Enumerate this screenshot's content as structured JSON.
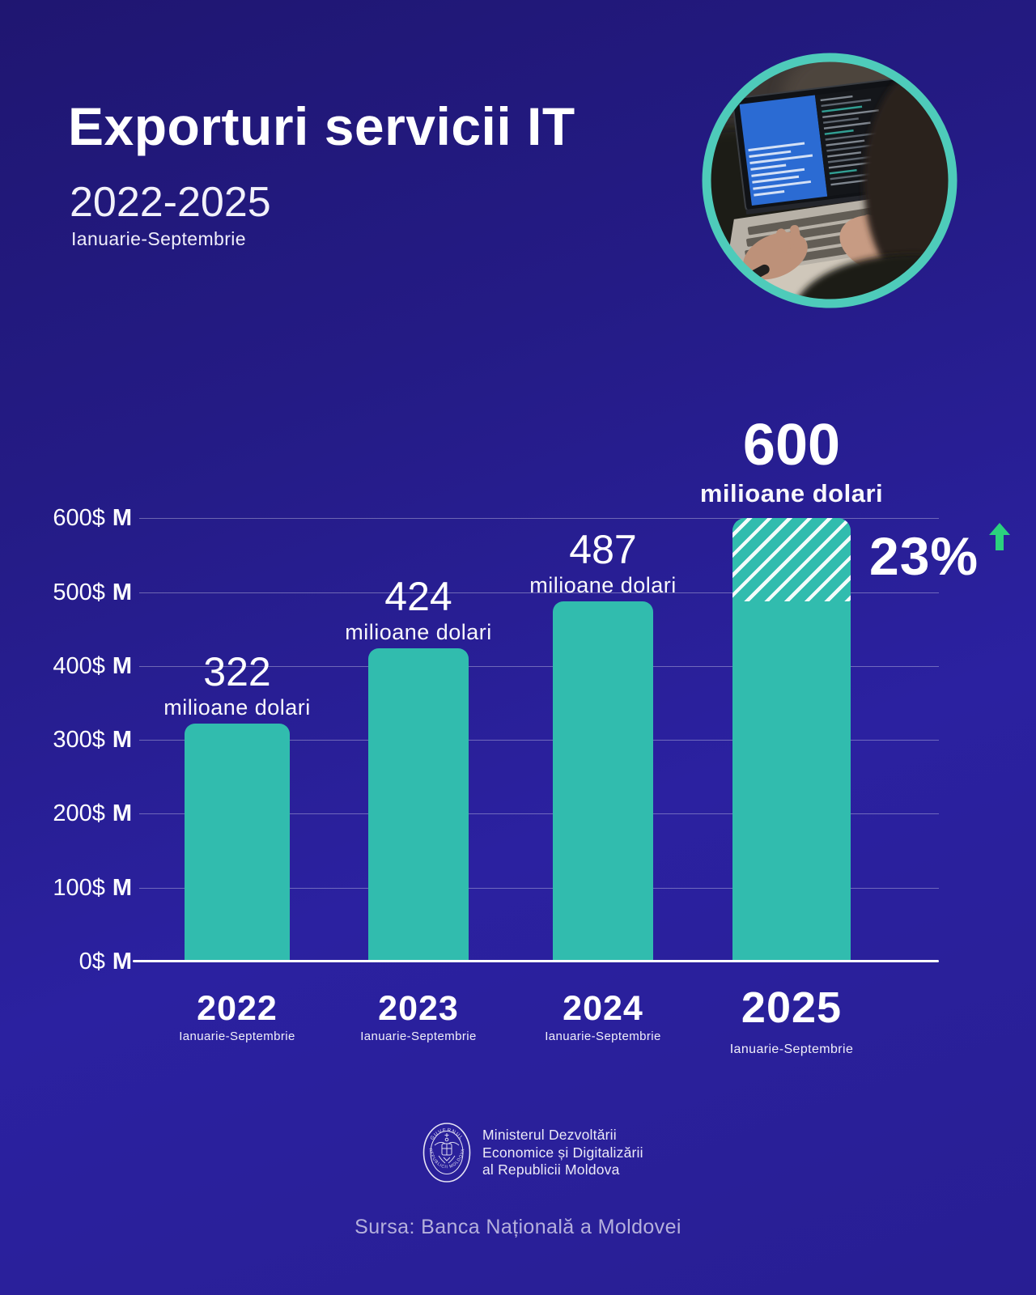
{
  "header": {
    "title": "Exporturi servicii IT",
    "years": "2022-2025",
    "period": "Ianuarie-Septembrie"
  },
  "chart_data": {
    "type": "bar",
    "title": "Exporturi servicii IT 2022-2025 Ianuarie-Septembrie",
    "categories": [
      "2022",
      "2023",
      "2024",
      "2025"
    ],
    "category_sublabel": "Ianuarie-Septembrie",
    "values": [
      322,
      424,
      487,
      600
    ],
    "value_labels": [
      "322",
      "424",
      "487",
      "600"
    ],
    "unit_suffix": "milioane dolari",
    "highlight_index": 3,
    "projection": {
      "bar_index": 3,
      "solid_to": 487,
      "hatched_to": 600,
      "style": "diagonal-hatch"
    },
    "growth_annotation": {
      "text": "23%",
      "direction": "up"
    },
    "y_ticks": [
      {
        "value": 600,
        "label": "600$ M"
      },
      {
        "value": 500,
        "label": "500$ M"
      },
      {
        "value": 400,
        "label": "400$ M"
      },
      {
        "value": 300,
        "label": "300$ M"
      },
      {
        "value": 200,
        "label": "200$ M"
      },
      {
        "value": 100,
        "label": "100$ M"
      },
      {
        "value": 0,
        "label": "0$ M"
      }
    ],
    "ylim": [
      0,
      600
    ],
    "grid": true,
    "legend": "none",
    "bar_color": "#31bcae",
    "hatch_stripe_color": "#ffffff",
    "annotation_arrow_color": "#2bd17e"
  },
  "footer": {
    "seal": {
      "top_text": "GUVERNUL",
      "bottom_text": "REPUBLICII MOLDOVA"
    },
    "ministry_lines": [
      "Ministerul Dezvoltării",
      "Economice și Digitalizării",
      "al Republicii Moldova"
    ],
    "source": "Sursa: Banca Națională a Moldovei"
  },
  "colors": {
    "background_top": "#1f1671",
    "background_bottom": "#281e93",
    "bar_teal": "#31bcae",
    "ring_teal": "#4ecbba",
    "arrow_green": "#2bd17e",
    "muted_text": "#b5b0dc"
  }
}
